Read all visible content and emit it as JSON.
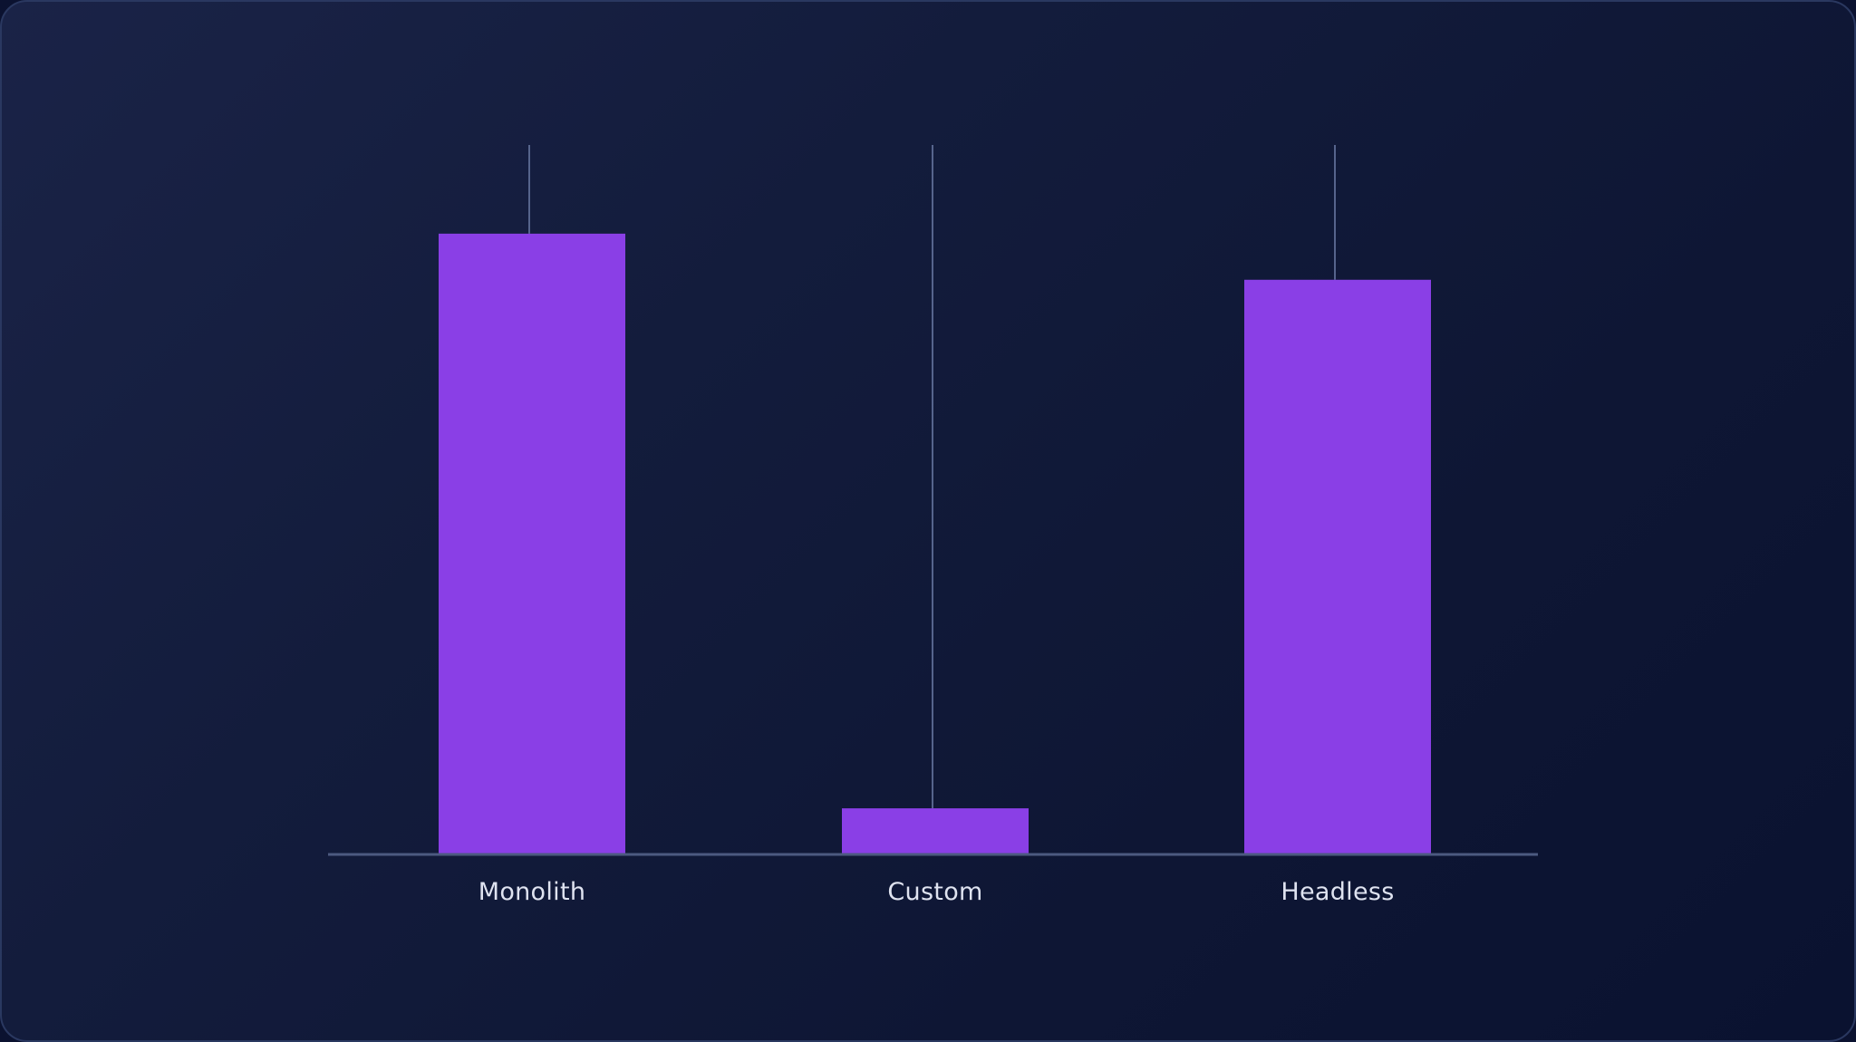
{
  "colors": {
    "bar": "#8a3fe6",
    "axis": "#4c5a80",
    "whisker": "#56648c",
    "label": "#dfe3f0"
  },
  "chart_data": {
    "type": "bar",
    "categories": [
      "Monolith",
      "Custom",
      "Headless"
    ],
    "values": [
      87.5,
      6.5,
      81
    ],
    "upper": [
      100,
      100,
      100
    ],
    "ylim": [
      0,
      100
    ],
    "grid": false,
    "legend": "none"
  }
}
